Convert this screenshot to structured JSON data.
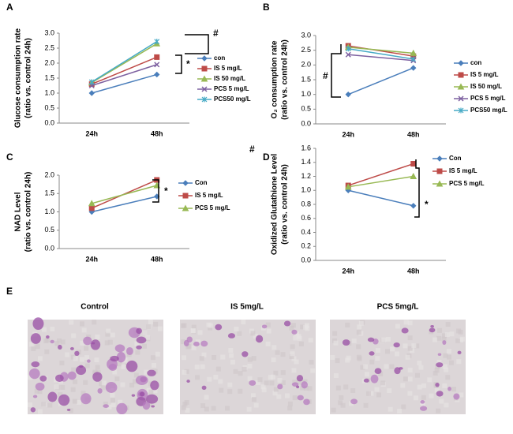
{
  "chart_data": [
    {
      "type": "line",
      "panel": "A",
      "ylabel": [
        "Glucose consumption rate",
        "(ratio vs. control 24h)"
      ],
      "categories": [
        "24h",
        "48h"
      ],
      "series": [
        {
          "name": "con",
          "color": "#4a7ebb",
          "marker": "diamond",
          "values": [
            1.0,
            1.62
          ]
        },
        {
          "name": "IS 5  mg/L",
          "color": "#be4b48",
          "marker": "square",
          "values": [
            1.3,
            2.2
          ]
        },
        {
          "name": "IS 50  mg/L",
          "color": "#98b954",
          "marker": "triangle",
          "values": [
            1.35,
            2.65
          ]
        },
        {
          "name": "PCS 5  mg/L",
          "color": "#7d60a0",
          "marker": "x",
          "values": [
            1.25,
            1.95
          ]
        },
        {
          "name": "PCS50  mg/L",
          "color": "#46aac5",
          "marker": "star",
          "values": [
            1.37,
            2.72
          ]
        }
      ],
      "ylim": [
        0,
        3
      ],
      "yticks": [
        {
          "value": 0,
          "label": "0.0"
        },
        {
          "value": 0.5,
          "label": "0.5"
        },
        {
          "value": 1,
          "label": "1.0"
        },
        {
          "value": 1.5,
          "label": "1.5"
        },
        {
          "value": 2,
          "label": "2.0"
        },
        {
          "value": 2.5,
          "label": "2.5"
        },
        {
          "value": 3,
          "label": "3.0"
        }
      ],
      "annotations": [
        "#",
        "*"
      ]
    },
    {
      "type": "line",
      "panel": "B",
      "ylabel": [
        "O₂ consumption rate",
        "(ratio vs. control 24h)"
      ],
      "categories": [
        "24h",
        "48h"
      ],
      "series": [
        {
          "name": "con",
          "color": "#4a7ebb",
          "marker": "diamond",
          "values": [
            1.0,
            1.9
          ]
        },
        {
          "name": "IS 5   mg/L",
          "color": "#be4b48",
          "marker": "square",
          "values": [
            2.65,
            2.3
          ]
        },
        {
          "name": "IS 50   mg/L",
          "color": "#98b954",
          "marker": "triangle",
          "values": [
            2.6,
            2.4
          ]
        },
        {
          "name": "PCS 5   mg/L",
          "color": "#7d60a0",
          "marker": "x",
          "values": [
            2.35,
            2.15
          ]
        },
        {
          "name": "PCS50   mg/L",
          "color": "#46aac5",
          "marker": "star",
          "values": [
            2.55,
            2.2
          ]
        }
      ],
      "ylim": [
        0,
        3
      ],
      "yticks": [
        {
          "value": 0,
          "label": "0.0"
        },
        {
          "value": 0.5,
          "label": "0.5"
        },
        {
          "value": 1,
          "label": "1.0"
        },
        {
          "value": 1.5,
          "label": "1.5"
        },
        {
          "value": 2,
          "label": "2.0"
        },
        {
          "value": 2.5,
          "label": "2.5"
        },
        {
          "value": 3,
          "label": "3.0"
        }
      ],
      "annotations": [
        "#"
      ]
    },
    {
      "type": "line",
      "panel": "C",
      "ylabel": [
        "NAD Level",
        "(ratio vs. control 24h)"
      ],
      "categories": [
        "24h",
        "48h"
      ],
      "series": [
        {
          "name": "Con",
          "color": "#4a7ebb",
          "marker": "diamond",
          "values": [
            1.0,
            1.42
          ]
        },
        {
          "name": "IS 5    mg/L",
          "color": "#be4b48",
          "marker": "square",
          "values": [
            1.1,
            1.87
          ]
        },
        {
          "name": "PCS 5 mg/L",
          "color": "#98b954",
          "marker": "triangle",
          "values": [
            1.23,
            1.72
          ]
        }
      ],
      "ylim": [
        0,
        2
      ],
      "yticks": [
        {
          "value": 0,
          "label": "0.0"
        },
        {
          "value": 0.5,
          "label": "0.5"
        },
        {
          "value": 1,
          "label": "1.0"
        },
        {
          "value": 1.5,
          "label": "1.5"
        },
        {
          "value": 2,
          "label": "2.0"
        }
      ],
      "annotations": [
        "*"
      ]
    },
    {
      "type": "line",
      "panel": "D",
      "ylabel": [
        "Oxidized Glutathione Level",
        "(ratio vs. control 24h)"
      ],
      "categories": [
        "24h",
        "48h"
      ],
      "series": [
        {
          "name": "Con",
          "color": "#4a7ebb",
          "marker": "diamond",
          "values": [
            1.0,
            0.78
          ]
        },
        {
          "name": "IS 5    mg/L",
          "color": "#be4b48",
          "marker": "square",
          "values": [
            1.07,
            1.38
          ]
        },
        {
          "name": "PCS 5 mg/L",
          "color": "#98b954",
          "marker": "triangle",
          "values": [
            1.05,
            1.2
          ]
        }
      ],
      "ylim": [
        0,
        1.6
      ],
      "yticks": [
        {
          "value": 0,
          "label": "0.0"
        },
        {
          "value": 0.2,
          "label": "0.2"
        },
        {
          "value": 0.4,
          "label": "0.4"
        },
        {
          "value": 0.6,
          "label": "0.6"
        },
        {
          "value": 0.8,
          "label": "0.8"
        },
        {
          "value": 1,
          "label": "1.0"
        },
        {
          "value": 1.2,
          "label": "1.2"
        },
        {
          "value": 1.4,
          "label": "1.4"
        },
        {
          "value": 1.6,
          "label": "1.6"
        }
      ],
      "annotations": [
        "*"
      ]
    }
  ],
  "stray_mark": "#",
  "panel_e": {
    "panel": "E",
    "labels": [
      "Control",
      "IS 5mg/L",
      "PCS 5mg/L"
    ]
  }
}
